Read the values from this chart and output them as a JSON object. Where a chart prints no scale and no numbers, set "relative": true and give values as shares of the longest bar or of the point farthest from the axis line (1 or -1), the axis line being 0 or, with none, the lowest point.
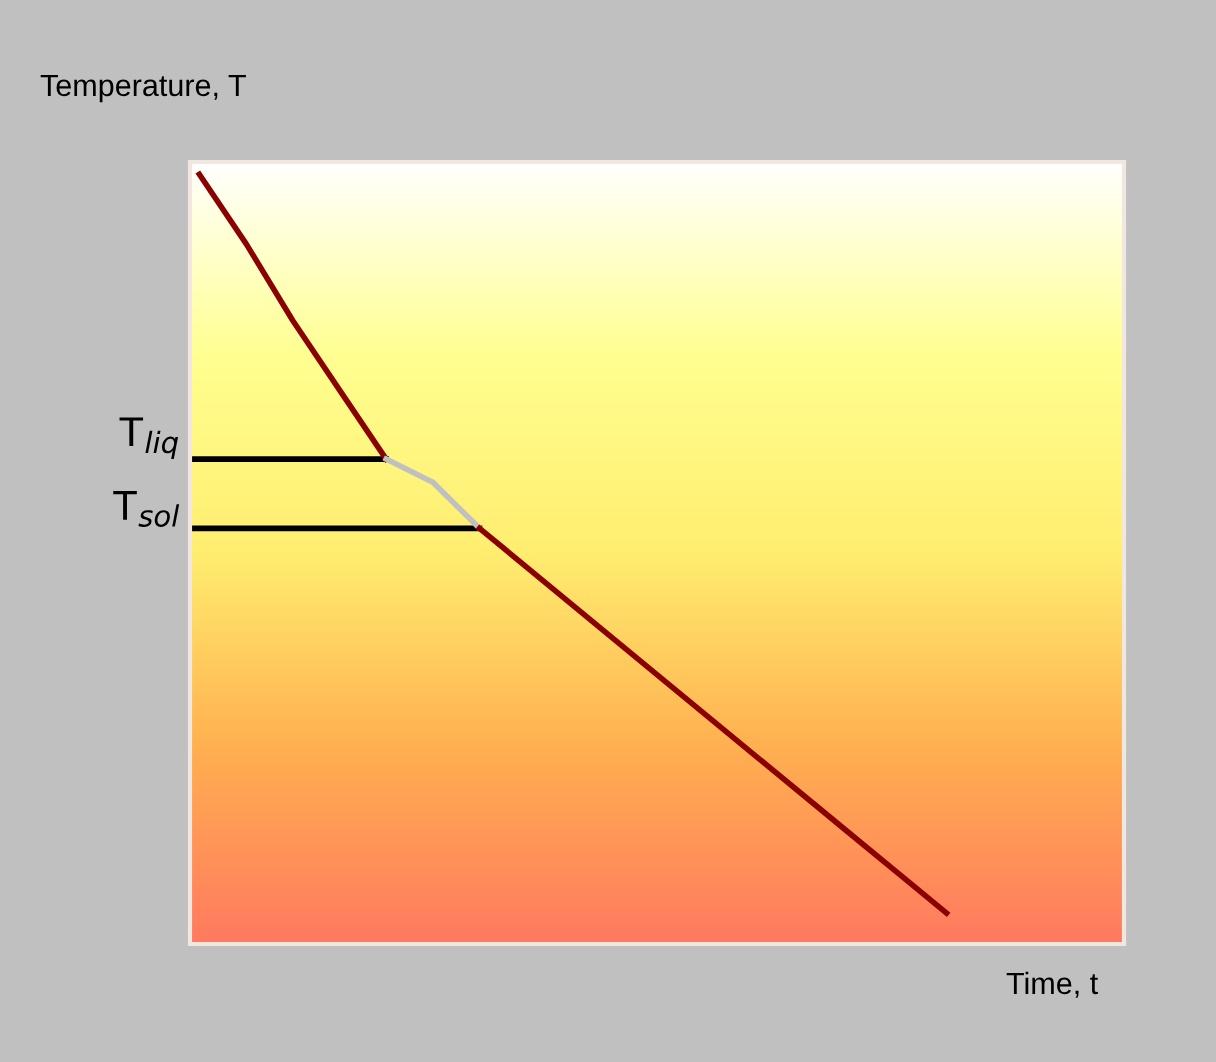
{
  "chart_data": {
    "type": "line",
    "relative": true,
    "xlabel": "Time, t",
    "ylabel": "Temperature, T",
    "categories": [
      null,
      null,
      null,
      null,
      null,
      null,
      null,
      null,
      null,
      null,
      null,
      null,
      null,
      null,
      null,
      null,
      null
    ],
    "series": [
      {
        "color": "#8b0000",
        "values": [
          1.0,
          0.91,
          0.81,
          0.72,
          0.63,
          null,
          null,
          null,
          null,
          null,
          null,
          null,
          null,
          null,
          null,
          null,
          null
        ]
      },
      {
        "color": "#c0c0c0",
        "values": [
          null,
          null,
          null,
          null,
          0.63,
          0.6,
          0.54,
          null,
          null,
          null,
          null,
          null,
          null,
          null,
          null,
          null,
          null
        ]
      },
      {
        "color": "#8b0000",
        "values": [
          null,
          null,
          null,
          null,
          null,
          null,
          0.54,
          0.49,
          0.44,
          0.39,
          0.34,
          0.29,
          0.24,
          0.19,
          0.14,
          0.09,
          0.04
        ]
      }
    ],
    "ref_lines": [
      {
        "axis": "y",
        "value": 0.63,
        "label": "T$_{liq}$",
        "color": "#000000"
      },
      {
        "axis": "y",
        "value": 0.54,
        "label": "T$_{sol}$",
        "color": "#000000"
      }
    ]
  }
}
